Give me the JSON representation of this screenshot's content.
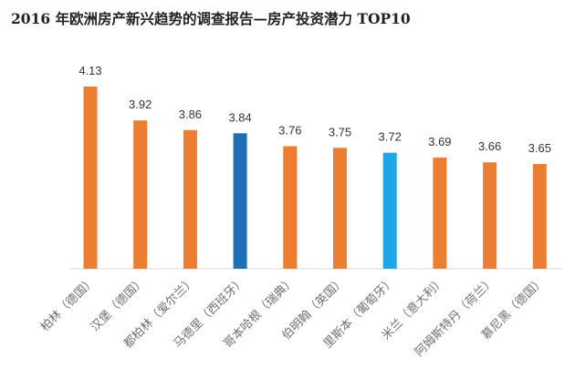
{
  "chart_data": {
    "type": "bar",
    "title": "2016 年欧洲房产新兴趋势的调查报告—房产投资潜力 TOP10",
    "categories": [
      "柏林（德国）",
      "汉堡（德国）",
      "都柏林（爱尔兰）",
      "马德里（西班牙）",
      "哥本哈根（瑞典）",
      "伯明翰（英国）",
      "里斯本（葡萄牙）",
      "米兰（意大利）",
      "阿姆斯特丹（荷兰）",
      "慕尼黑（德国）"
    ],
    "values": [
      4.13,
      3.92,
      3.86,
      3.84,
      3.76,
      3.75,
      3.72,
      3.69,
      3.66,
      3.65
    ],
    "value_labels": [
      "4.13",
      "3.92",
      "3.86",
      "3.84",
      "3.76",
      "3.75",
      "3.72",
      "3.69",
      "3.66",
      "3.65"
    ],
    "bar_colors": [
      "#ED7D31",
      "#ED7D31",
      "#ED7D31",
      "#1F6FB5",
      "#ED7D31",
      "#ED7D31",
      "#1EA7E8",
      "#ED7D31",
      "#ED7D31",
      "#ED7D31"
    ],
    "ylim": [
      3.0,
      4.2
    ],
    "xlabel": "",
    "ylabel": "",
    "grid": false,
    "legend": "none",
    "axis_line_color": "#D9D9D9"
  }
}
